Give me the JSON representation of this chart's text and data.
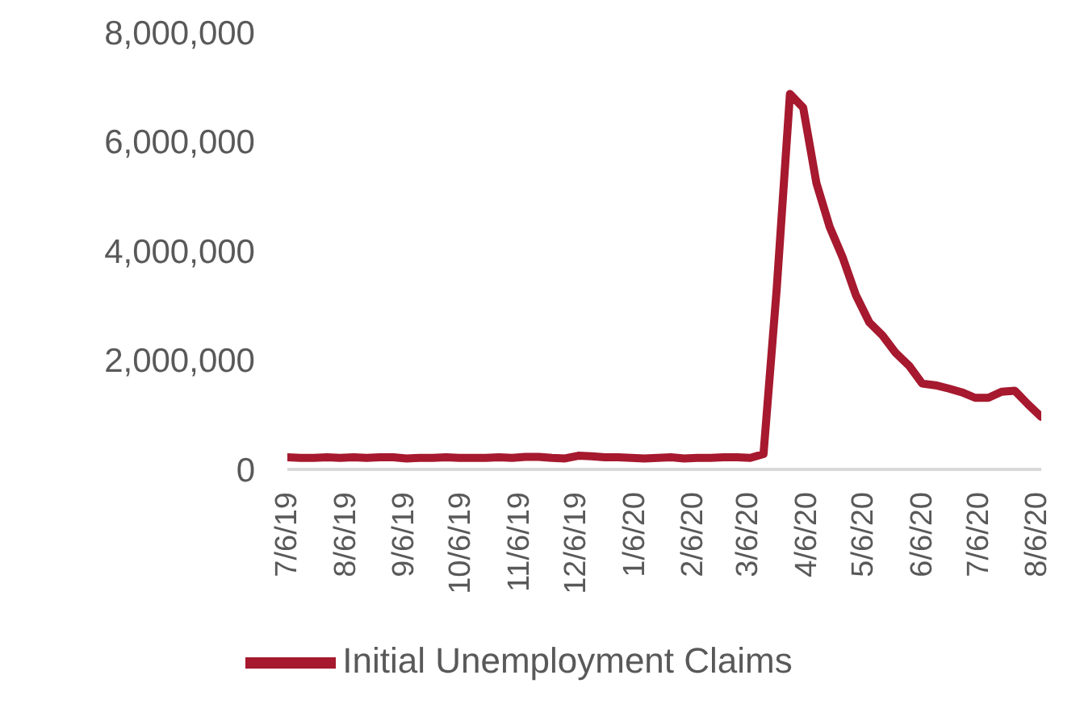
{
  "chart_data": {
    "type": "line",
    "x": [
      "2019-07-06",
      "2019-07-13",
      "2019-07-20",
      "2019-07-27",
      "2019-08-03",
      "2019-08-10",
      "2019-08-17",
      "2019-08-24",
      "2019-08-31",
      "2019-09-07",
      "2019-09-14",
      "2019-09-21",
      "2019-09-28",
      "2019-10-05",
      "2019-10-12",
      "2019-10-19",
      "2019-10-26",
      "2019-11-02",
      "2019-11-09",
      "2019-11-16",
      "2019-11-23",
      "2019-11-30",
      "2019-12-07",
      "2019-12-14",
      "2019-12-21",
      "2019-12-28",
      "2020-01-04",
      "2020-01-11",
      "2020-01-18",
      "2020-01-25",
      "2020-02-01",
      "2020-02-08",
      "2020-02-15",
      "2020-02-22",
      "2020-02-29",
      "2020-03-07",
      "2020-03-14",
      "2020-03-21",
      "2020-03-28",
      "2020-04-04",
      "2020-04-11",
      "2020-04-18",
      "2020-04-25",
      "2020-05-02",
      "2020-05-09",
      "2020-05-16",
      "2020-05-23",
      "2020-05-30",
      "2020-06-06",
      "2020-06-13",
      "2020-06-20",
      "2020-06-27",
      "2020-07-04",
      "2020-07-11",
      "2020-07-18",
      "2020-07-25",
      "2020-08-01",
      "2020-08-08"
    ],
    "series": [
      {
        "name": "Initial Unemployment Claims",
        "color": "#a6192e",
        "values": [
          220000,
          210000,
          210000,
          220000,
          210000,
          220000,
          210000,
          220000,
          220000,
          200000,
          210000,
          210000,
          220000,
          210000,
          210000,
          210000,
          220000,
          210000,
          230000,
          230000,
          210000,
          200000,
          250000,
          240000,
          220000,
          220000,
          210000,
          200000,
          210000,
          220000,
          200000,
          210000,
          210000,
          220000,
          220000,
          210000,
          280000,
          3310000,
          6870000,
          6620000,
          5240000,
          4440000,
          3870000,
          3180000,
          2690000,
          2450000,
          2130000,
          1900000,
          1570000,
          1540000,
          1480000,
          1410000,
          1310000,
          1310000,
          1420000,
          1440000,
          1190000,
          960000
        ]
      }
    ],
    "xlim": [
      "2019-07-06",
      "2020-08-08"
    ],
    "xticks": [
      {
        "value": "2019-07-06",
        "label": "7/6/19"
      },
      {
        "value": "2019-08-06",
        "label": "8/6/19"
      },
      {
        "value": "2019-09-06",
        "label": "9/6/19"
      },
      {
        "value": "2019-10-06",
        "label": "10/6/19"
      },
      {
        "value": "2019-11-06",
        "label": "11/6/19"
      },
      {
        "value": "2019-12-06",
        "label": "12/6/19"
      },
      {
        "value": "2020-01-06",
        "label": "1/6/20"
      },
      {
        "value": "2020-02-06",
        "label": "2/6/20"
      },
      {
        "value": "2020-03-06",
        "label": "3/6/20"
      },
      {
        "value": "2020-04-06",
        "label": "4/6/20"
      },
      {
        "value": "2020-05-06",
        "label": "5/6/20"
      },
      {
        "value": "2020-06-06",
        "label": "6/6/20"
      },
      {
        "value": "2020-07-06",
        "label": "7/6/20"
      },
      {
        "value": "2020-08-06",
        "label": "8/6/20"
      }
    ],
    "ylim": [
      0,
      8000000
    ],
    "yticks": [
      {
        "value": 0,
        "label": "0"
      },
      {
        "value": 2000000,
        "label": "2,000,000"
      },
      {
        "value": 4000000,
        "label": "4,000,000"
      },
      {
        "value": 6000000,
        "label": "6,000,000"
      },
      {
        "value": 8000000,
        "label": "8,000,000"
      }
    ],
    "grid": false,
    "legend": "bottom",
    "marker": "none",
    "line_style": "solid"
  }
}
